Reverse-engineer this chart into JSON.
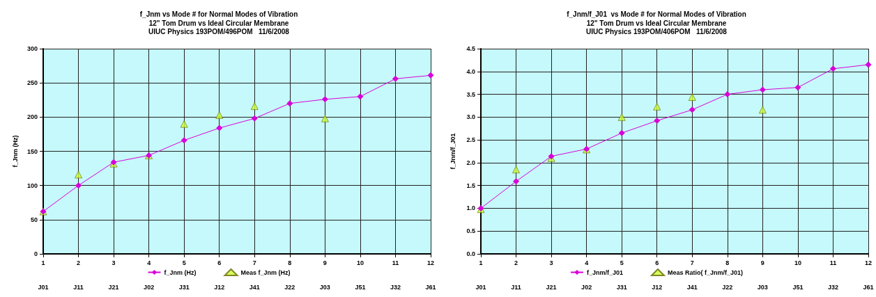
{
  "chart_data": [
    {
      "type": "line",
      "title": "f_Jnm vs Mode # for Normal Modes of Vibration",
      "subtitle": "12\" Tom Drum vs Ideal Circular Membrane\nUIUC Physics 193POM/496POM   11/6/2008",
      "ylabel": "f_Jnm (Hz)",
      "x": [
        1,
        2,
        3,
        4,
        5,
        6,
        7,
        8,
        9,
        10,
        11,
        12
      ],
      "xlim": [
        1,
        12
      ],
      "xticks": [
        1,
        2,
        3,
        4,
        5,
        6,
        7,
        8,
        9,
        10,
        11,
        12
      ],
      "annotations": [
        "J01",
        "J11",
        "J21",
        "J02",
        "J31",
        "J12",
        "J41",
        "J22",
        "J03",
        "J51",
        "J32",
        "J61"
      ],
      "ylim": [
        0,
        300
      ],
      "yticks": [
        0,
        50,
        100,
        150,
        200,
        250,
        300
      ],
      "grid": true,
      "legend": "bottom",
      "series": [
        {
          "name": "f_Jnm (Hz)",
          "type": "line",
          "marker": "diamond",
          "line_style": "solid",
          "color": "#d800d8",
          "values": [
            62,
            100,
            134,
            144,
            166,
            184,
            198,
            220,
            226,
            230,
            256,
            261
          ]
        },
        {
          "name": "Meas f_Jnm (Hz)",
          "type": "scatter",
          "marker": "triangle",
          "color": "#ccff33",
          "values": [
            62,
            116,
            132,
            144,
            190,
            203,
            216,
            null,
            198,
            null,
            null,
            null
          ]
        }
      ]
    },
    {
      "type": "line",
      "title": "f_Jnm/f_J01  vs Mode # for Normal Modes of Vibration",
      "subtitle": "12\" Tom Drum vs Ideal Circular Membrane\nUIUC Physics 193POM/406POM   11/6/2008",
      "ylabel": "f_Jnm/f_J01",
      "x": [
        1,
        2,
        3,
        4,
        5,
        6,
        7,
        8,
        9,
        10,
        11,
        12
      ],
      "xlim": [
        1,
        12
      ],
      "xticks": [
        1,
        2,
        3,
        4,
        5,
        6,
        7,
        8,
        9,
        10,
        11,
        12
      ],
      "annotations": [
        "J01",
        "J11",
        "J21",
        "J02",
        "J31",
        "J12",
        "J41",
        "J22",
        "J03",
        "J51",
        "J32",
        "J61"
      ],
      "ylim": [
        0,
        4.5
      ],
      "yticks": [
        {
          "value": 0,
          "label": "0.0"
        },
        {
          "value": 0.5,
          "label": "0.5"
        },
        {
          "value": 1,
          "label": "1.0"
        },
        {
          "value": 1.5,
          "label": "1.5"
        },
        {
          "value": 2,
          "label": "2.0"
        },
        {
          "value": 2.5,
          "label": "2.5"
        },
        {
          "value": 3,
          "label": "3.0"
        },
        {
          "value": 3.5,
          "label": "3.5"
        },
        {
          "value": 4,
          "label": "4.0"
        },
        {
          "value": 4.5,
          "label": "4.5"
        }
      ],
      "grid": true,
      "legend": "bottom",
      "series": [
        {
          "name": "f_Jnm/f_J01",
          "type": "line",
          "marker": "diamond",
          "line_style": "solid",
          "color": "#d800d8",
          "values": [
            1.0,
            1.59,
            2.14,
            2.3,
            2.65,
            2.92,
            3.16,
            3.5,
            3.6,
            3.65,
            4.06,
            4.15
          ]
        },
        {
          "name": "Meas Ratio( f_Jnm/f_J01)",
          "type": "scatter",
          "marker": "triangle",
          "color": "#ccff33",
          "values": [
            0.98,
            1.85,
            2.1,
            2.29,
            3.0,
            3.23,
            3.44,
            null,
            3.16,
            null,
            null,
            null
          ]
        }
      ]
    }
  ]
}
